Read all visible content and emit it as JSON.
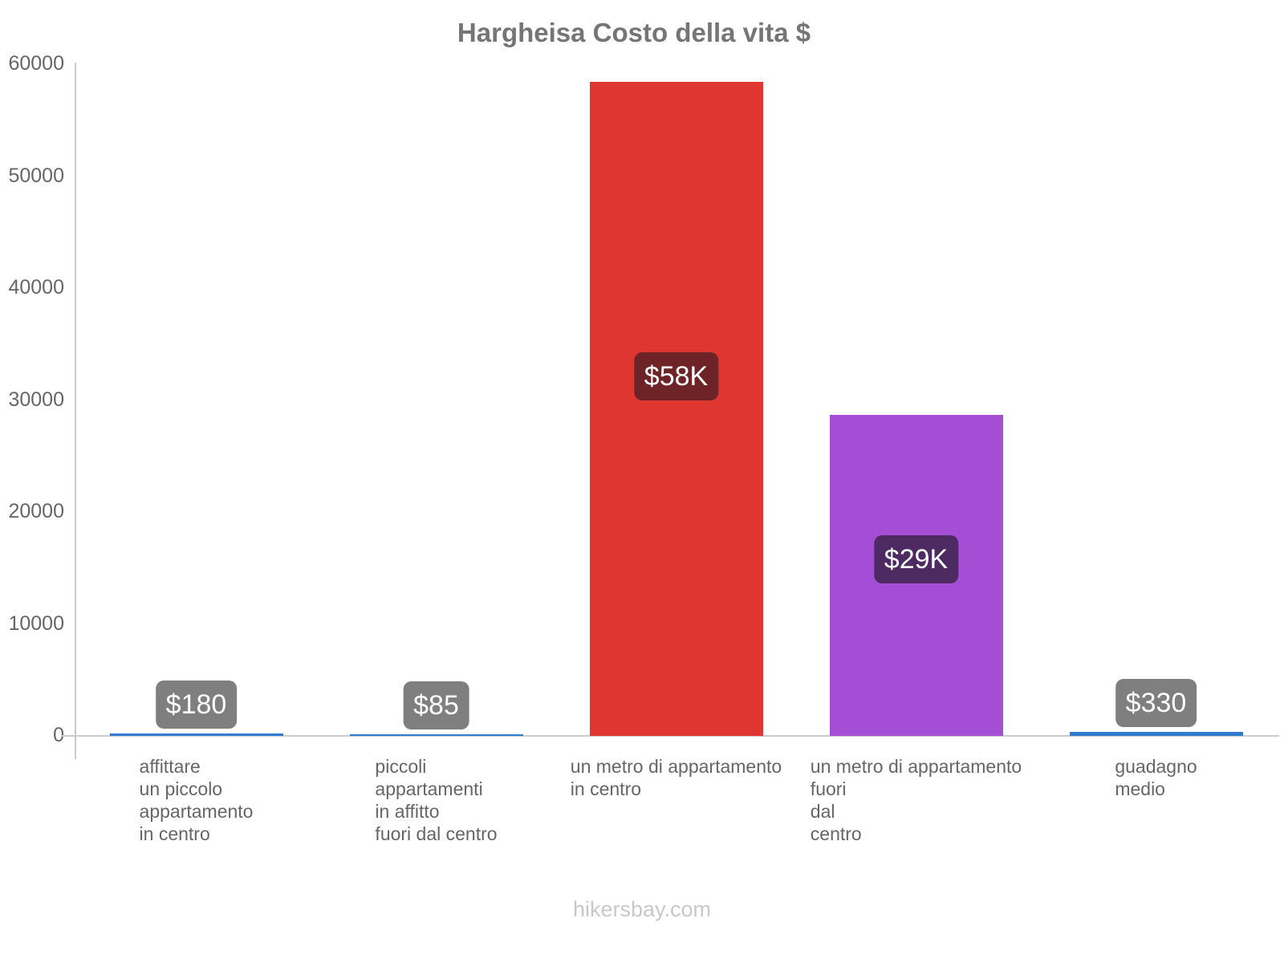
{
  "page": {
    "title": "Hargheisa Costo della vita $",
    "footer": "hikersbay.com"
  },
  "style": {
    "background": "#ffffff",
    "title_color": "#757575",
    "axis_text_color": "#666666",
    "axis_line_color": "#cccccc",
    "category_text_color": "#666666",
    "badge_text_color": "#ffffff",
    "footer_color": "#c8c8c8"
  },
  "chart_data": {
    "type": "bar",
    "title": "Hargheisa Costo della vita $",
    "xlabel": "",
    "ylabel": "",
    "ylim": [
      0,
      60000
    ],
    "ytick_interval": 10000,
    "yticks": [
      0,
      10000,
      20000,
      30000,
      40000,
      50000,
      60000
    ],
    "grid": false,
    "legend": "none",
    "currency": "$",
    "categories": [
      "affittare\nun piccolo\nappartamento\nin centro",
      "piccoli\nappartamenti\nin affitto\nfuori dal centro",
      "un metro di appartamento\nin centro",
      "un metro di appartamento\nfuori\ndal\ncentro",
      "guadagno\nmedio"
    ],
    "values": [
      180,
      85,
      58400,
      28700,
      330
    ],
    "bar_labels": [
      "$180",
      "$85",
      "$58K",
      "$29K",
      "$330"
    ],
    "bar_colors": [
      "#2f7cd1",
      "#2f7cd1",
      "#e03631",
      "#a44ed6",
      "#2f7cd1"
    ],
    "badge_colors": [
      "#7f7f7f",
      "#7f7f7f",
      "#6e2426",
      "#4e2a63",
      "#7f7f7f"
    ]
  }
}
